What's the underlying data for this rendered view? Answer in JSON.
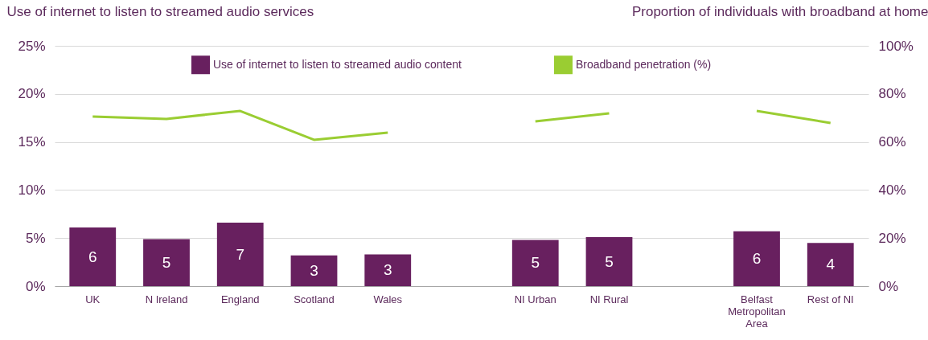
{
  "chart_data": {
    "type": "bar",
    "ylabel": "Use of internet to listen to streamed audio services",
    "y2label": "Proportion of individuals with broadband at home",
    "categories": [
      "UK",
      "N Ireland",
      "England",
      "Scotland",
      "Wales",
      null,
      "NI Urban",
      "NI Rural",
      null,
      "Belfast Metropolitan Area",
      "Rest of NI"
    ],
    "series": [
      {
        "name": "Use of internet to listen to streamed audio content",
        "color": "#68205f",
        "values": [
          6.1,
          4.9,
          6.6,
          3.2,
          3.3,
          null,
          4.8,
          5.1,
          null,
          5.7,
          4.5
        ],
        "value_labels": [
          "6",
          "5",
          "7",
          "3",
          "3",
          null,
          "5",
          "5",
          null,
          "6",
          "4"
        ]
      },
      {
        "name": "Broadband penetration (%)",
        "type": "line",
        "axis": "y2",
        "color": "#9acd32",
        "values": [
          70.6,
          69.6,
          72.9,
          60.9,
          63.9,
          null,
          68.6,
          71.9,
          null,
          72.9,
          67.9
        ]
      }
    ],
    "ylim": [
      0,
      25
    ],
    "yticks": [
      {
        "value": 0,
        "label": "0%"
      },
      {
        "value": 5,
        "label": "5%"
      },
      {
        "value": 10,
        "label": "10%"
      },
      {
        "value": 15,
        "label": "15%"
      },
      {
        "value": 20,
        "label": "20%"
      },
      {
        "value": 25,
        "label": "25%"
      }
    ],
    "y2lim": [
      0,
      100
    ],
    "y2ticks": [
      {
        "value": 0,
        "label": "0%"
      },
      {
        "value": 20,
        "label": "20%"
      },
      {
        "value": 40,
        "label": "40%"
      },
      {
        "value": 60,
        "label": "60%"
      },
      {
        "value": 80,
        "label": "80%"
      },
      {
        "value": 100,
        "label": "100%"
      }
    ],
    "grid": "y",
    "legend": "top",
    "marker": "none"
  }
}
